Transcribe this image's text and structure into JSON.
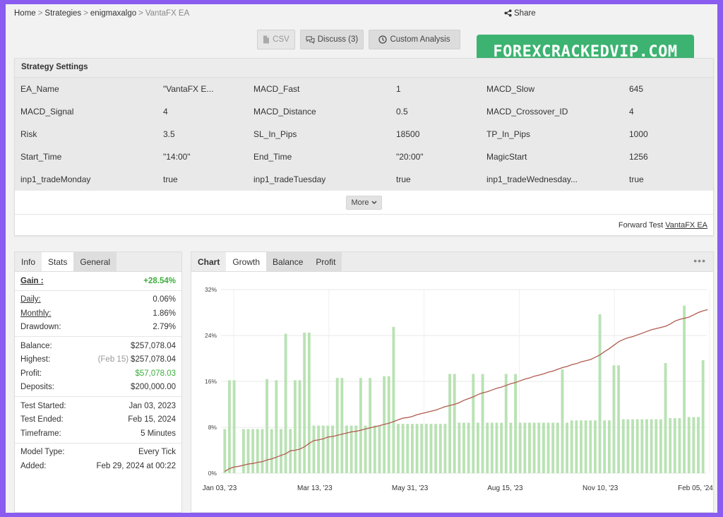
{
  "breadcrumb": [
    "Home",
    "Strategies",
    "enigmaxalgo"
  ],
  "breadcrumb_current": "VantaFX EA",
  "share_label": "Share",
  "buttons": {
    "csv": "CSV",
    "discuss": "Discuss (3)",
    "custom": "Custom Analysis"
  },
  "watermark": "FOREXCRACKEDVIP.COM",
  "settings": {
    "title": "Strategy Settings",
    "cells": [
      {
        "k": "EA_Name",
        "v": "\"VantaFX E..."
      },
      {
        "k": "MACD_Fast",
        "v": "1"
      },
      {
        "k": "MACD_Slow",
        "v": "645"
      },
      {
        "k": "MACD_Signal",
        "v": "4"
      },
      {
        "k": "MACD_Distance",
        "v": "0.5"
      },
      {
        "k": "MACD_Crossover_ID",
        "v": "4"
      },
      {
        "k": "Risk",
        "v": "3.5"
      },
      {
        "k": "SL_In_Pips",
        "v": "18500"
      },
      {
        "k": "TP_In_Pips",
        "v": "1000"
      },
      {
        "k": "Start_Time",
        "v": "\"14:00\""
      },
      {
        "k": "End_Time",
        "v": "\"20:00\""
      },
      {
        "k": "MagicStart",
        "v": "1256"
      },
      {
        "k": "inp1_tradeMonday",
        "v": "true"
      },
      {
        "k": "inp1_tradeTuesday",
        "v": "true"
      },
      {
        "k": "inp1_tradeWednesday...",
        "v": "true"
      }
    ],
    "more_label": "More",
    "forward_prefix": "Forward Test",
    "forward_link": "VantaFX EA"
  },
  "stats": {
    "tabs": [
      "Info",
      "Stats",
      "General"
    ],
    "gain_label": "Gain :",
    "gain_value": "+28.54%",
    "daily_label": "Daily:",
    "daily_value": "0.06%",
    "monthly_label": "Monthly:",
    "monthly_value": "1.86%",
    "drawdown_label": "Drawdown:",
    "drawdown_value": "2.79%",
    "balance_label": "Balance:",
    "balance_value": "$257,078.04",
    "highest_label": "Highest:",
    "highest_date": "(Feb 15)",
    "highest_value": "$257,078.04",
    "profit_label": "Profit:",
    "profit_value": "$57,078.03",
    "deposits_label": "Deposits:",
    "deposits_value": "$200,000.00",
    "started_label": "Test Started:",
    "started_value": "Jan 03, 2023",
    "ended_label": "Test Ended:",
    "ended_value": "Feb 15, 2024",
    "timeframe_label": "Timeframe:",
    "timeframe_value": "5 Minutes",
    "model_label": "Model Type:",
    "model_value": "Every Tick",
    "added_label": "Added:",
    "added_value": "Feb 29, 2024 at 00:22"
  },
  "chart_tabs": [
    "Chart",
    "Growth",
    "Balance",
    "Profit"
  ],
  "colors": {
    "line": "#b05a4e",
    "bar": "#b9e2b3",
    "accent_green": "#3cae3c",
    "background": "#8a5cf0"
  },
  "chart_data": {
    "type": "bar",
    "ylim": [
      0,
      32
    ],
    "y_ticks": [
      0,
      8,
      16,
      24,
      32
    ],
    "y_tick_labels": [
      "0%",
      "8%",
      "16%",
      "24%",
      "32%"
    ],
    "x_tick_labels": [
      "Jan 03, '23",
      "Mar 13, '23",
      "May 31, '23",
      "Aug 15, '23",
      "Nov 10, '23",
      "Feb 05, '24"
    ],
    "series": [
      {
        "type": "bar",
        "values": [
          7.7,
          16.2,
          16.2,
          0,
          7.7,
          7.7,
          7.7,
          7.7,
          7.7,
          16.4,
          7.7,
          16.2,
          7.7,
          24.3,
          7.7,
          16.2,
          16.2,
          24.5,
          24.5,
          8.3,
          8.3,
          8.3,
          8.3,
          8.3,
          16.6,
          16.6,
          8.3,
          8.3,
          8.3,
          16.6,
          8.3,
          16.6,
          8.3,
          8.3,
          16.9,
          16.9,
          25.5,
          8.6,
          8.6,
          8.6,
          8.6,
          8.6,
          8.6,
          8.6,
          8.6,
          8.6,
          8.6,
          8.6,
          17.3,
          17.3,
          8.8,
          8.8,
          8.8,
          17.3,
          8.8,
          17.3,
          8.8,
          8.8,
          8.8,
          8.8,
          17.3,
          8.8,
          17.3,
          8.8,
          8.8,
          8.8,
          8.8,
          8.8,
          8.8,
          8.8,
          8.8,
          8.8,
          18.1,
          8.8,
          9.2,
          9.2,
          9.2,
          9.2,
          9.2,
          9.2,
          27.7,
          9.2,
          9.2,
          18.8,
          18.8,
          9.4,
          9.4,
          9.4,
          9.4,
          9.4,
          9.4,
          9.4,
          9.4,
          9.4,
          19.2,
          9.6,
          9.6,
          9.6,
          29.2,
          9.8,
          9.8,
          9.8,
          19.7
        ]
      },
      {
        "type": "line",
        "values": [
          0.3,
          0.8,
          1.1,
          1.2,
          1.4,
          1.6,
          1.7,
          1.9,
          2.0,
          2.3,
          2.5,
          2.8,
          3.1,
          3.4,
          3.9,
          4.0,
          4.2,
          4.6,
          5.2,
          5.7,
          5.8,
          6.0,
          6.3,
          6.4,
          6.6,
          6.8,
          7.0,
          7.2,
          7.3,
          7.5,
          7.7,
          7.9,
          8.1,
          8.3,
          8.5,
          8.7,
          9.0,
          9.3,
          9.6,
          9.7,
          9.9,
          10.2,
          10.4,
          10.6,
          10.8,
          11.0,
          11.3,
          11.6,
          11.8,
          12.0,
          12.3,
          12.7,
          13.0,
          13.3,
          13.7,
          14.0,
          14.2,
          14.5,
          14.8,
          15.0,
          15.3,
          15.6,
          15.8,
          16.1,
          16.4,
          16.6,
          16.9,
          17.1,
          17.3,
          17.6,
          17.8,
          18.1,
          18.4,
          18.6,
          18.9,
          19.1,
          19.4,
          19.6,
          19.8,
          20.2,
          20.6,
          21.2,
          21.7,
          22.3,
          22.9,
          23.3,
          23.6,
          23.8,
          24.1,
          24.4,
          24.7,
          25.0,
          25.2,
          25.4,
          25.6,
          26.0,
          26.5,
          26.8,
          27.0,
          27.2,
          27.6,
          28.0,
          28.3,
          28.5
        ]
      }
    ]
  }
}
